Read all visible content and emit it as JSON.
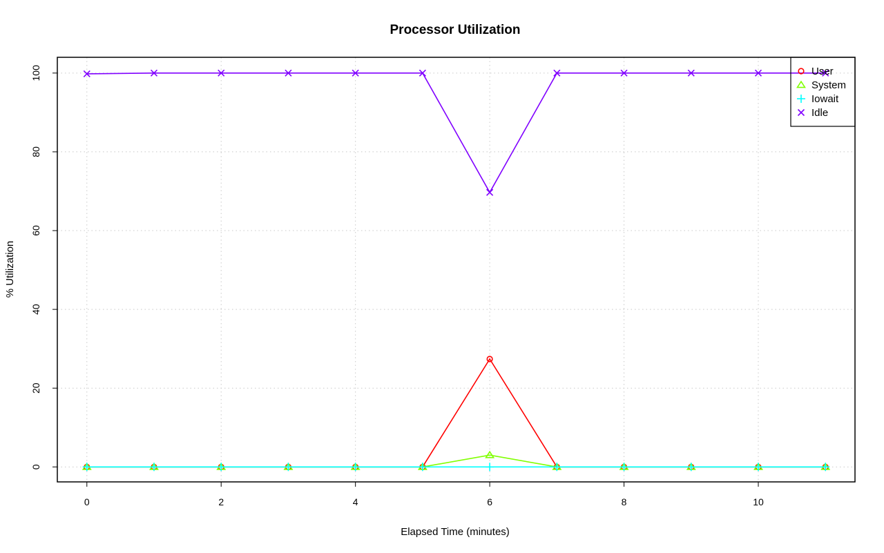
{
  "chart_data": {
    "type": "line",
    "title": "Processor Utilization",
    "xlabel": "Elapsed Time (minutes)",
    "ylabel": "% Utilization",
    "x": [
      0,
      1,
      2,
      3,
      4,
      5,
      6,
      7,
      8,
      9,
      10,
      11
    ],
    "xlim": [
      -0.44,
      11.44
    ],
    "ylim": [
      -3.8,
      104
    ],
    "xticks": [
      0,
      2,
      4,
      6,
      8,
      10
    ],
    "yticks": [
      0,
      20,
      40,
      60,
      80,
      100
    ],
    "grid": true,
    "legend_position": "top-right",
    "series": [
      {
        "name": "User",
        "color": "#ff0000",
        "marker": "circle",
        "values": [
          0,
          0,
          0,
          0,
          0,
          0,
          27.4,
          0,
          0,
          0,
          0,
          0
        ]
      },
      {
        "name": "System",
        "color": "#80ff00",
        "marker": "triangle",
        "values": [
          0,
          0,
          0,
          0,
          0,
          0,
          3.0,
          0,
          0,
          0,
          0,
          0
        ]
      },
      {
        "name": "Iowait",
        "color": "#00ffff",
        "marker": "plus",
        "values": [
          0,
          0,
          0,
          0,
          0,
          0,
          0,
          0,
          0,
          0,
          0,
          0
        ]
      },
      {
        "name": "Idle",
        "color": "#8000ff",
        "marker": "cross",
        "values": [
          99.8,
          100,
          100,
          100,
          100,
          100,
          69.7,
          100,
          100,
          100,
          100,
          100
        ]
      }
    ]
  }
}
